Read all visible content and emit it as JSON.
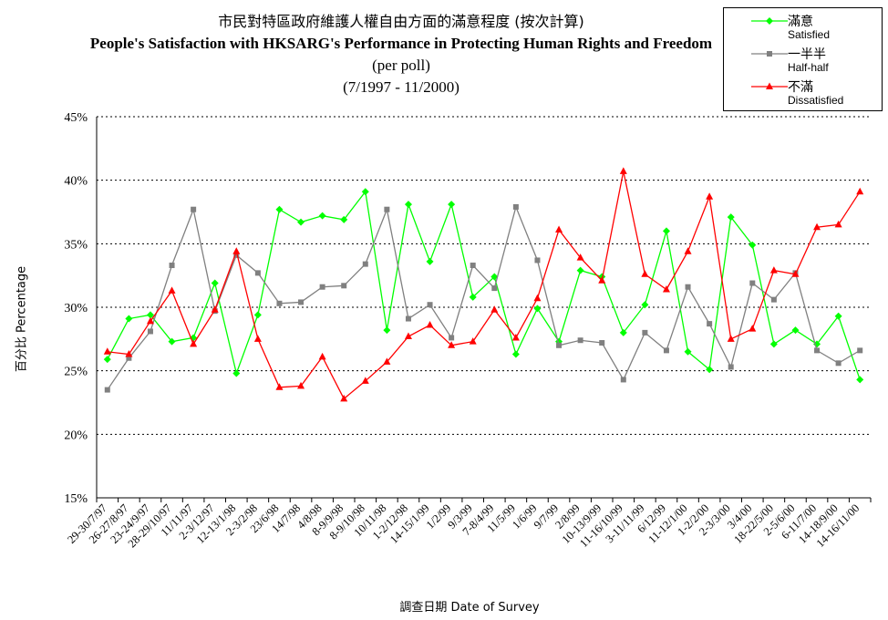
{
  "title": {
    "zh": "市民對特區政府維護人權自由方面的滿意程度 (按次計算)",
    "en": "People's Satisfaction with HKSARG's Performance in Protecting Human Rights and Freedom",
    "sub1": "(per poll)",
    "sub2": "(7/1997 - 11/2000)"
  },
  "axis": {
    "ylabel": "百分比 Percentage",
    "xlabel": "調查日期 Date of Survey"
  },
  "legend": [
    {
      "name": "滿意",
      "sub": "Satisfied",
      "color": "#00ff00",
      "marker": "diamond"
    },
    {
      "name": "一半半",
      "sub": "Half-half",
      "color": "#808080",
      "marker": "square"
    },
    {
      "name": "不滿",
      "sub": "Dissatisfied",
      "color": "#ff0000",
      "marker": "triangle"
    }
  ],
  "chart_data": {
    "type": "line",
    "title": "People's Satisfaction with HKSARG's Performance in Protecting Human Rights and Freedom",
    "xlabel": "調查日期 Date of Survey",
    "ylabel": "百分比 Percentage",
    "ylim": [
      15,
      45
    ],
    "yticks": [
      "15%",
      "20%",
      "25%",
      "30%",
      "35%",
      "40%",
      "45%"
    ],
    "grid": "horizontal dashed",
    "legend_position": "top-right",
    "categories": [
      "29-30/7/97",
      "26-27/8/97",
      "23-24/9/97",
      "28-29/10/97",
      "11/11/97",
      "2-3/12/97",
      "12-13/1/98",
      "2-3/2/98",
      "23/6/98",
      "14/7/98",
      "4/8/98",
      "8-9/9/98",
      "8-9/10/98",
      "10/11/98",
      "1-2/12/98",
      "14-15/1/99",
      "1/2/99",
      "9/3/99",
      "7-8/4/99",
      "11/5/99",
      "1/6/99",
      "9/7/99",
      "2/8/99",
      "10-13/9/99",
      "11-16/10/99",
      "3-11/11/99",
      "6/12/99",
      "11-12/1/00",
      "1-2/2/00",
      "2-3/3/00",
      "3/4/00",
      "18-22/5/00",
      "2-5/6/00",
      "6-11/7/00",
      "14-18/9/00",
      "14-16/11/00"
    ],
    "tick_labels": [
      "29-30/7/97",
      "26-27/8/97",
      "23-24/9/97",
      "28-29/10/97",
      "11/11/97",
      "2-3/12/97",
      "12-13/1/98",
      "2-3/2/98",
      "23/6/98",
      "14/7/98",
      "4/8/98",
      "8-9/9/98",
      "8-9/10/98",
      "10/11/98",
      "1-2/12/98",
      "14-15/1/99",
      "1/2/99",
      "9/3/99",
      "7-8/4/99",
      "11/5/99",
      "1/6/99",
      "9/7/99",
      "2/8/99",
      "10-13/9/99",
      "11-16/10/99",
      "3-11/11/99",
      "6/12/99",
      "11-12/1/00",
      "1-2/2/00",
      "2-3/3/00",
      "3/4/00",
      "18-22/5/00",
      "2-5/6/00",
      "6-11/7/00",
      "14-18/9/00",
      "14-16/11/00"
    ],
    "series": [
      {
        "name": "滿意 Satisfied",
        "color": "#00ff00",
        "marker": "diamond",
        "values": [
          25.9,
          29.1,
          29.4,
          27.3,
          27.6,
          31.9,
          24.8,
          29.4,
          37.7,
          36.7,
          37.2,
          36.9,
          39.1,
          28.2,
          38.1,
          33.6,
          38.1,
          30.8,
          32.4,
          26.3,
          29.9,
          27.3,
          32.9,
          32.4,
          28.0,
          30.2,
          36.0,
          26.5,
          25.1,
          37.1,
          34.9,
          27.1,
          28.2,
          27.1,
          29.3,
          24.3
        ]
      },
      {
        "name": "一半半 Half-half",
        "color": "#808080",
        "marker": "square",
        "values": [
          23.5,
          26.0,
          28.1,
          33.3,
          37.7,
          29.7,
          34.1,
          32.7,
          30.3,
          30.4,
          31.6,
          31.7,
          33.4,
          37.7,
          29.1,
          30.2,
          27.6,
          33.3,
          31.5,
          37.9,
          33.7,
          27.0,
          27.4,
          27.2,
          24.3,
          28.0,
          26.6,
          31.6,
          28.7,
          25.3,
          31.9,
          30.6,
          32.7,
          26.6,
          25.6,
          26.6
        ]
      },
      {
        "name": "不滿 Dissatisfied",
        "color": "#ff0000",
        "marker": "triangle",
        "values": [
          26.5,
          26.3,
          28.9,
          31.3,
          27.1,
          29.8,
          34.4,
          27.5,
          23.7,
          23.8,
          26.1,
          22.8,
          24.2,
          25.7,
          27.7,
          28.6,
          27.0,
          27.3,
          29.8,
          27.6,
          30.7,
          36.1,
          33.9,
          32.1,
          40.7,
          32.6,
          31.4,
          34.4,
          38.7,
          27.5,
          28.3,
          32.9,
          32.6,
          36.3,
          36.5,
          39.1
        ]
      }
    ]
  }
}
